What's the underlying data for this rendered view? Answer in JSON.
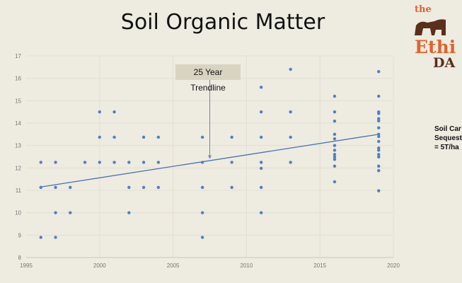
{
  "slide": {
    "title": "Soil Organic Matter",
    "callout": "25 Year Trendline",
    "side_note": [
      "Soil Car",
      "Sequest",
      "= 5T/ha"
    ],
    "logo_text": [
      "the",
      "Ethi",
      "DA"
    ]
  },
  "colors": {
    "background": "#eeebe1",
    "point": "#4f81bd",
    "trendline": "#4a72b0",
    "grid": "#e2dfd4",
    "logo_orange": "#e0632e",
    "logo_brown": "#5a2f1c"
  },
  "chart_data": {
    "type": "scatter",
    "title": "Soil Organic Matter",
    "xlabel": "",
    "ylabel": "",
    "xlim": [
      1995,
      2020
    ],
    "ylim": [
      8,
      17
    ],
    "xticks": [
      1995,
      2000,
      2005,
      2010,
      2015,
      2020
    ],
    "yticks": [
      8,
      9,
      10,
      11,
      12,
      13,
      14,
      15,
      16,
      17
    ],
    "grid": true,
    "points": [
      [
        1996,
        12.25
      ],
      [
        1996,
        11.13
      ],
      [
        1996,
        8.9
      ],
      [
        1997,
        12.25
      ],
      [
        1997,
        11.13
      ],
      [
        1997,
        10.0
      ],
      [
        1997,
        8.9
      ],
      [
        1998,
        11.13
      ],
      [
        1998,
        10.0
      ],
      [
        1999,
        12.25
      ],
      [
        2000,
        14.5
      ],
      [
        2000,
        13.37
      ],
      [
        2000,
        12.25
      ],
      [
        2001,
        14.5
      ],
      [
        2001,
        13.37
      ],
      [
        2001,
        12.25
      ],
      [
        2002,
        12.25
      ],
      [
        2002,
        11.13
      ],
      [
        2002,
        10.0
      ],
      [
        2003,
        13.37
      ],
      [
        2003,
        12.25
      ],
      [
        2003,
        11.13
      ],
      [
        2004,
        13.37
      ],
      [
        2004,
        12.25
      ],
      [
        2004,
        11.13
      ],
      [
        2007,
        13.37
      ],
      [
        2007,
        12.25
      ],
      [
        2007,
        11.13
      ],
      [
        2007,
        10.0
      ],
      [
        2007,
        8.9
      ],
      [
        2009,
        13.37
      ],
      [
        2009,
        12.25
      ],
      [
        2009,
        11.13
      ],
      [
        2011,
        15.6
      ],
      [
        2011,
        14.5
      ],
      [
        2011,
        13.37
      ],
      [
        2011,
        12.25
      ],
      [
        2011,
        11.98
      ],
      [
        2011,
        11.13
      ],
      [
        2011,
        10.0
      ],
      [
        2013,
        16.4
      ],
      [
        2013,
        14.5
      ],
      [
        2013,
        13.37
      ],
      [
        2013,
        12.25
      ],
      [
        2016,
        15.2
      ],
      [
        2016,
        14.5
      ],
      [
        2016,
        14.09
      ],
      [
        2016,
        13.5
      ],
      [
        2016,
        13.3
      ],
      [
        2016,
        13.0
      ],
      [
        2016,
        12.79
      ],
      [
        2016,
        12.6
      ],
      [
        2016,
        12.49
      ],
      [
        2016,
        12.38
      ],
      [
        2016,
        12.08
      ],
      [
        2016,
        11.38
      ],
      [
        2019,
        16.3
      ],
      [
        2019,
        15.2
      ],
      [
        2019,
        14.5
      ],
      [
        2019,
        14.43
      ],
      [
        2019,
        14.2
      ],
      [
        2019,
        14.1
      ],
      [
        2019,
        13.79
      ],
      [
        2019,
        13.5
      ],
      [
        2019,
        13.4
      ],
      [
        2019,
        13.18
      ],
      [
        2019,
        12.89
      ],
      [
        2019,
        12.79
      ],
      [
        2019,
        12.6
      ],
      [
        2019,
        12.49
      ],
      [
        2019,
        12.08
      ],
      [
        2019,
        11.88
      ],
      [
        2019,
        10.98
      ]
    ],
    "trendline": {
      "name": "25 Year Trendline",
      "from": [
        1996,
        11.15
      ],
      "to": [
        2019,
        13.5
      ]
    },
    "annotation": {
      "text": "25 Year Trendline",
      "points_to": [
        2007.5,
        12.4
      ]
    }
  }
}
